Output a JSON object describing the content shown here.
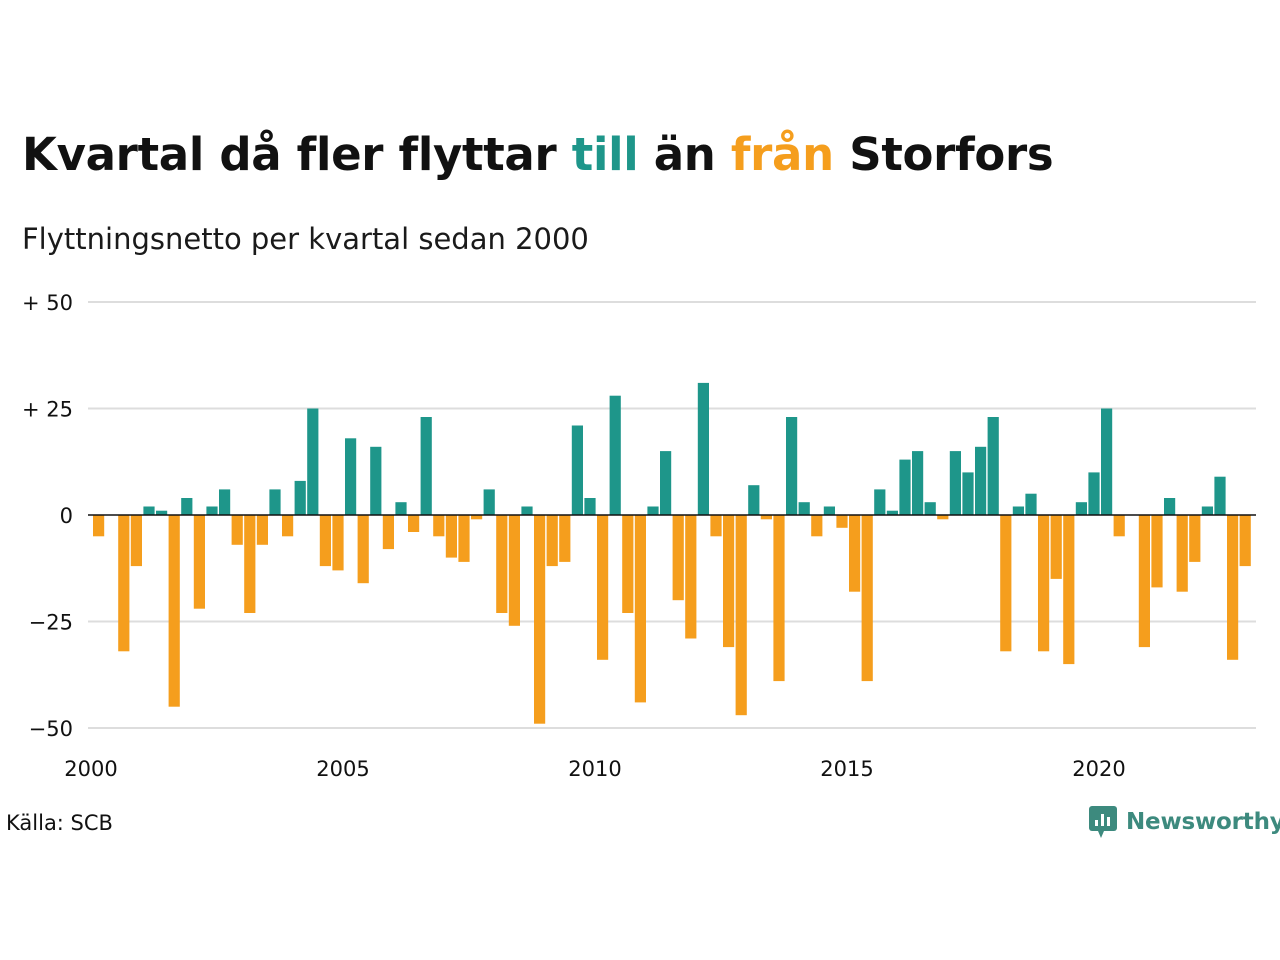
{
  "title": {
    "part1": "Kvartal då fler flyttar ",
    "word_in": "till",
    "part2": " än ",
    "word_out": "från",
    "part3": " Storfors"
  },
  "subtitle": "Flyttningsnetto per kvartal sedan 2000",
  "source": "Källa: SCB",
  "brand": "Newsworthy",
  "colors": {
    "positive": "#1e968a",
    "negative": "#f59e1d",
    "grid": "#dddddd",
    "brand": "#3d8a7e"
  },
  "chart_data": {
    "type": "bar",
    "title": "Kvartal då fler flyttar till än från Storfors",
    "subtitle": "Flyttningsnetto per kvartal sedan 2000",
    "x_start": "2000 Q1",
    "x_ticks": [
      "2000",
      "2005",
      "2010",
      "2015",
      "2020"
    ],
    "y_ticks": [
      {
        "value": 50,
        "label": "+ 50"
      },
      {
        "value": 25,
        "label": "+ 25"
      },
      {
        "value": 0,
        "label": "0"
      },
      {
        "value": -25,
        "label": "−25"
      },
      {
        "value": -50,
        "label": "−50"
      }
    ],
    "ylim": [
      -50,
      50
    ],
    "grid": true,
    "values": [
      -5,
      0,
      -32,
      -12,
      2,
      1,
      -45,
      4,
      -22,
      2,
      6,
      -7,
      -23,
      -7,
      6,
      -5,
      8,
      25,
      -12,
      -13,
      18,
      -16,
      16,
      -8,
      3,
      -4,
      23,
      -5,
      -10,
      -11,
      -1,
      6,
      -23,
      -26,
      2,
      -49,
      -12,
      -11,
      21,
      4,
      -34,
      28,
      -23,
      -44,
      2,
      15,
      -20,
      -29,
      31,
      -5,
      -31,
      -47,
      7,
      -1,
      -39,
      23,
      3,
      -5,
      2,
      -3,
      -18,
      -39,
      6,
      1,
      13,
      15,
      3,
      -1,
      15,
      10,
      16,
      23,
      -32,
      2,
      5,
      -32,
      -15,
      -35,
      3,
      10,
      25,
      -5,
      0,
      -31,
      -17,
      4,
      -18,
      -11,
      2,
      9,
      -34,
      -12
    ]
  }
}
